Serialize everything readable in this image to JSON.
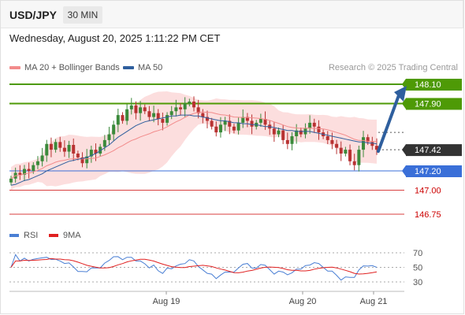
{
  "header": {
    "symbol": "USD/JPY",
    "timeframe": "30 MIN",
    "datetime": "Wednesday, August 20, 2025 1:11:22 PM CET"
  },
  "legend": {
    "ma20": {
      "label": "MA 20 + Bollinger Bands",
      "color": "#f28b8b"
    },
    "ma50": {
      "label": "MA 50",
      "color": "#2f5f9e"
    },
    "credit": "Research © 2025 Trading Central"
  },
  "rsi_legend": {
    "rsi": {
      "label": "RSI",
      "color": "#4a7fd4"
    },
    "ma9": {
      "label": "9MA",
      "color": "#e02020"
    }
  },
  "chart_data": [
    {
      "type": "line",
      "x_labels": [
        "Aug 19",
        "Aug 20",
        "Aug 21"
      ],
      "price_levels": [
        {
          "value": 148.1,
          "label": "148.10",
          "color": "#4e9a06",
          "style": "resistance"
        },
        {
          "value": 147.9,
          "label": "147.90",
          "color": "#4e9a06",
          "style": "resistance"
        },
        {
          "value": 147.42,
          "label": "147.42",
          "color": "#333333",
          "style": "last"
        },
        {
          "value": 147.2,
          "label": "147.20",
          "color": "#3a6fd8",
          "style": "pivot"
        },
        {
          "value": 147.0,
          "label": "147.00",
          "color": "#cc0000",
          "style": "support"
        },
        {
          "value": 146.75,
          "label": "146.75",
          "color": "#cc0000",
          "style": "support"
        }
      ],
      "close": [
        147.12,
        147.18,
        147.16,
        147.22,
        147.2,
        147.26,
        147.3,
        147.36,
        147.48,
        147.42,
        147.5,
        147.44,
        147.4,
        147.47,
        147.38,
        147.34,
        147.28,
        147.35,
        147.42,
        147.38,
        147.45,
        147.52,
        147.58,
        147.68,
        147.78,
        147.72,
        147.84,
        147.88,
        147.8,
        147.86,
        147.82,
        147.76,
        147.8,
        147.74,
        147.7,
        147.78,
        147.82,
        147.86,
        147.84,
        147.9,
        147.92,
        147.86,
        147.8,
        147.76,
        147.72,
        147.66,
        147.6,
        147.68,
        147.72,
        147.66,
        147.62,
        147.7,
        147.76,
        147.72,
        147.66,
        147.7,
        147.74,
        147.68,
        147.64,
        147.58,
        147.62,
        147.52,
        147.48,
        147.56,
        147.62,
        147.58,
        147.64,
        147.7,
        147.66,
        147.6,
        147.56,
        147.52,
        147.48,
        147.44,
        147.38,
        147.42,
        147.3,
        147.26,
        147.42,
        147.55,
        147.5,
        147.46,
        147.42
      ],
      "ma50": [
        147.05,
        147.06,
        147.08,
        147.1,
        147.11,
        147.13,
        147.15,
        147.17,
        147.2,
        147.22,
        147.24,
        147.26,
        147.28,
        147.3,
        147.31,
        147.32,
        147.33,
        147.34,
        147.36,
        147.38,
        147.41,
        147.44,
        147.47,
        147.51,
        147.55,
        147.58,
        147.61,
        147.64,
        147.67,
        147.69,
        147.71,
        147.72,
        147.73,
        147.74,
        147.75,
        147.76,
        147.77,
        147.77,
        147.78,
        147.78,
        147.78,
        147.77,
        147.77,
        147.76,
        147.75,
        147.74,
        147.73,
        147.72,
        147.72,
        147.71,
        147.7,
        147.7,
        147.69,
        147.69,
        147.68,
        147.68,
        147.67,
        147.66,
        147.66,
        147.65,
        147.64,
        147.63,
        147.62,
        147.62,
        147.61,
        147.61,
        147.61,
        147.61,
        147.6,
        147.59,
        147.58,
        147.57,
        147.56,
        147.55,
        147.54,
        147.53,
        147.52,
        147.51,
        147.5,
        147.5,
        147.49,
        147.49,
        147.48
      ],
      "bb_upper_band": "ma20 ± 2σ",
      "rsi": {
        "levels": [
          70,
          50,
          30
        ]
      }
    }
  ]
}
